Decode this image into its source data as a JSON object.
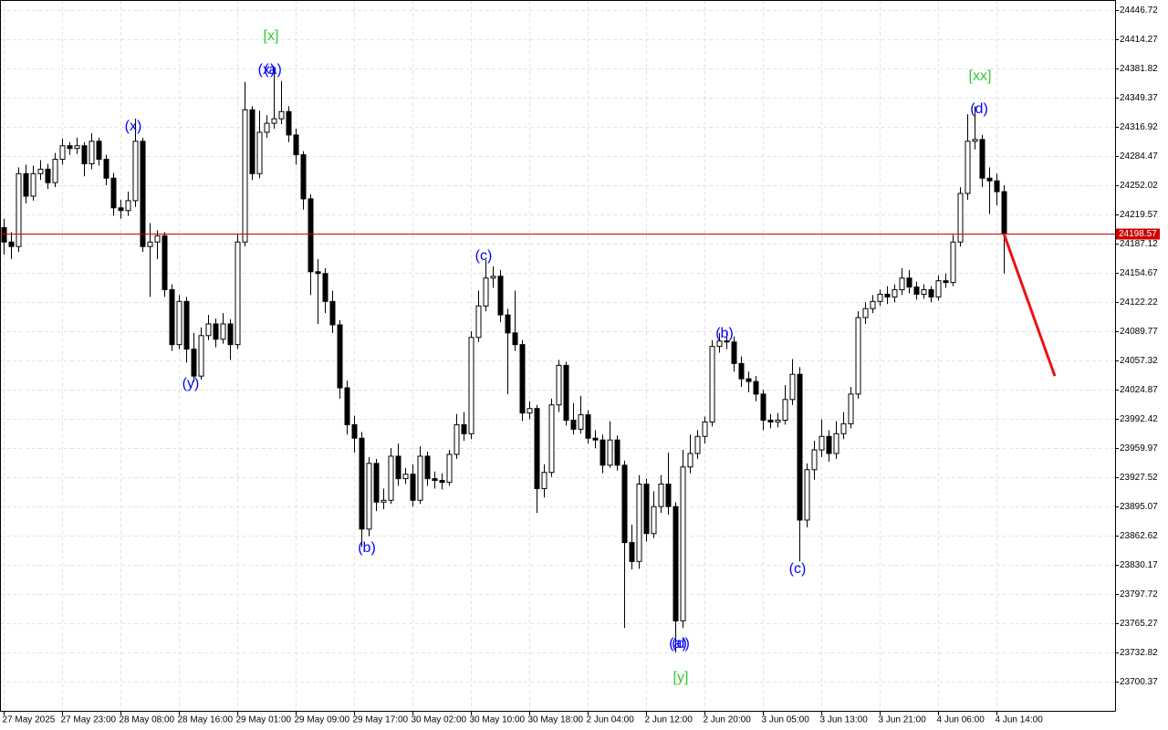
{
  "chart_data": {
    "type": "candlestick",
    "up_color": "#ffffff",
    "down_color": "#000000",
    "grid": true,
    "categories": [
      "27 May 2025",
      null,
      null,
      null,
      null,
      null,
      null,
      null,
      "27 May 23:00",
      null,
      null,
      null,
      null,
      null,
      null,
      null,
      "28 May 08:00",
      null,
      null,
      null,
      null,
      null,
      null,
      null,
      "28 May 16:00",
      null,
      null,
      null,
      null,
      null,
      null,
      null,
      "29 May 01:00",
      null,
      null,
      null,
      null,
      null,
      null,
      null,
      "29 May 09:00",
      null,
      null,
      null,
      null,
      null,
      null,
      null,
      "29 May 17:00",
      null,
      null,
      null,
      null,
      null,
      null,
      null,
      "30 May 02:00",
      null,
      null,
      null,
      null,
      null,
      null,
      null,
      "30 May 10:00",
      null,
      null,
      null,
      null,
      null,
      null,
      null,
      "30 May 18:00",
      null,
      null,
      null,
      null,
      null,
      null,
      null,
      "2 Jun 04:00",
      null,
      null,
      null,
      null,
      null,
      null,
      null,
      "2 Jun 12:00",
      null,
      null,
      null,
      null,
      null,
      null,
      null,
      "2 Jun 20:00",
      null,
      null,
      null,
      null,
      null,
      null,
      null,
      "3 Jun 05:00",
      null,
      null,
      null,
      null,
      null,
      null,
      null,
      "3 Jun 13:00",
      null,
      null,
      null,
      null,
      null,
      null,
      null,
      "3 Jun 21:00",
      null,
      null,
      null,
      null,
      null,
      null,
      null,
      "4 Jun 06:00",
      null,
      null,
      null,
      null,
      null,
      null,
      null,
      "4 Jun 14:00",
      null
    ],
    "open": [
      24205,
      24189,
      24184,
      24265,
      24240,
      24265,
      24270,
      24255,
      24281,
      24296,
      24293,
      24296,
      24276,
      24301,
      24281,
      24260,
      24227,
      24224,
      24235,
      24301,
      24184,
      24189,
      24196,
      24136,
      24075,
      24123,
      24070,
      24040,
      24085,
      24098,
      24081,
      24098,
      24075,
      24189,
      24336,
      24265,
      24311,
      24321,
      24326,
      24334,
      24308,
      24286,
      24237,
      24156,
      24154,
      24123,
      24097,
      24027,
      23986,
      23971,
      23870,
      23943,
      23900,
      23902,
      23951,
      23926,
      23931,
      23902,
      23951,
      23926,
      23924,
      23922,
      23953,
      23986,
      23976,
      24083,
      24118,
      24149,
      24151,
      24108,
      24088,
      24075,
      23999,
      24004,
      23915,
      23933,
      24008,
      24052,
      23991,
      23981,
      23997,
      23971,
      23969,
      23941,
      23969,
      23941,
      23855,
      23834,
      23920,
      23865,
      23895,
      23920,
      23895,
      23768,
      23939,
      23954,
      23973,
      23989,
      24073,
      24079,
      24078,
      24054,
      24037,
      24034,
      24020,
      23991,
      23989,
      23991,
      24014,
      24042,
      23880,
      23936,
      23958,
      23973,
      23954,
      23976,
      23987,
      24020,
      24105,
      24115,
      24123,
      24131,
      24128,
      24136,
      24149,
      24139,
      24131,
      24136,
      24128,
      24146,
      24144,
      24189,
      24243,
      24301,
      24303,
      24260,
      24257,
      24245
    ],
    "high": [
      24215,
      24200,
      24272,
      24275,
      24274,
      24280,
      24276,
      24288,
      24304,
      24300,
      24305,
      24300,
      24310,
      24305,
      24286,
      24266,
      24236,
      24245,
      24326,
      24305,
      24210,
      24202,
      24200,
      24142,
      24130,
      24128,
      24088,
      24094,
      24108,
      24104,
      24110,
      24103,
      24198,
      24367,
      24340,
      24335,
      24330,
      24382,
      24368,
      24340,
      24315,
      24290,
      24242,
      24170,
      24160,
      24135,
      24102,
      24035,
      23996,
      23978,
      23950,
      23948,
      23915,
      23960,
      23965,
      23938,
      23942,
      23962,
      23956,
      23934,
      23932,
      23958,
      23998,
      24000,
      24090,
      24135,
      24169,
      24162,
      24158,
      24115,
      24135,
      24080,
      24012,
      24008,
      23942,
      24015,
      24058,
      24056,
      24010,
      24018,
      24002,
      23980,
      23975,
      23990,
      23974,
      23946,
      23875,
      23930,
      23926,
      23912,
      23930,
      23955,
      23900,
      23958,
      23975,
      23980,
      23995,
      24080,
      24088,
      24090,
      24084,
      24062,
      24045,
      24040,
      24025,
      23998,
      23999,
      24030,
      24059,
      24050,
      23943,
      23968,
      23992,
      23980,
      23990,
      24000,
      24028,
      24112,
      24122,
      24130,
      24136,
      24140,
      24142,
      24160,
      24158,
      24145,
      24142,
      24140,
      24152,
      24154,
      24197,
      24250,
      24331,
      24340,
      24308,
      24272,
      24265,
      24252
    ],
    "low": [
      24175,
      24170,
      24178,
      24232,
      24235,
      24258,
      24248,
      24250,
      24275,
      24286,
      24287,
      24262,
      24270,
      24274,
      24252,
      24218,
      24215,
      24218,
      24228,
      24178,
      24128,
      24170,
      24128,
      24068,
      24070,
      24055,
      24034,
      24036,
      24080,
      24072,
      24076,
      24058,
      24070,
      24184,
      24258,
      24260,
      24305,
      24315,
      24320,
      24300,
      24275,
      24225,
      24130,
      24098,
      24110,
      24088,
      24015,
      23975,
      23955,
      23850,
      23862,
      23890,
      23892,
      23898,
      23918,
      23920,
      23895,
      23898,
      23918,
      23915,
      23914,
      23918,
      23948,
      23968,
      23970,
      24078,
      24112,
      24138,
      24100,
      24020,
      24068,
      23990,
      23992,
      23888,
      23905,
      23928,
      24000,
      23985,
      23975,
      23976,
      23965,
      23960,
      23932,
      23938,
      23935,
      23760,
      23825,
      23826,
      23856,
      23860,
      23888,
      23886,
      23733,
      23760,
      23932,
      23948,
      23965,
      23984,
      24066,
      24070,
      24045,
      24028,
      24022,
      24012,
      23980,
      23982,
      23983,
      23986,
      24008,
      23834,
      23872,
      23925,
      23950,
      23945,
      23948,
      23970,
      23982,
      24015,
      24098,
      24110,
      24118,
      24120,
      24122,
      24130,
      24132,
      24125,
      24126,
      24122,
      24124,
      24138,
      24140,
      24184,
      24236,
      24292,
      24250,
      24220,
      24230,
      24154
    ],
    "close": [
      24189,
      24184,
      24265,
      24240,
      24265,
      24270,
      24255,
      24281,
      24296,
      24293,
      24296,
      24276,
      24301,
      24281,
      24260,
      24227,
      24224,
      24235,
      24301,
      24184,
      24189,
      24196,
      24136,
      24075,
      24123,
      24070,
      24040,
      24085,
      24098,
      24081,
      24098,
      24075,
      24189,
      24336,
      24265,
      24311,
      24321,
      24326,
      24334,
      24308,
      24286,
      24237,
      24156,
      24154,
      24123,
      24097,
      24027,
      23986,
      23971,
      23870,
      23943,
      23900,
      23902,
      23951,
      23926,
      23931,
      23902,
      23951,
      23926,
      23924,
      23922,
      23953,
      23986,
      23976,
      24083,
      24118,
      24149,
      24151,
      24108,
      24088,
      24075,
      23999,
      24004,
      23915,
      23933,
      24008,
      24052,
      23991,
      23981,
      23997,
      23971,
      23969,
      23941,
      23969,
      23941,
      23855,
      23834,
      23920,
      23865,
      23895,
      23920,
      23895,
      23768,
      23939,
      23954,
      23973,
      23989,
      24073,
      24079,
      24078,
      24054,
      24037,
      24034,
      24020,
      23991,
      23989,
      23991,
      24014,
      24042,
      23880,
      23936,
      23958,
      23973,
      23954,
      23976,
      23987,
      24020,
      24105,
      24115,
      24123,
      24131,
      24128,
      24136,
      24149,
      24139,
      24131,
      24136,
      24128,
      24146,
      24144,
      24189,
      24243,
      24301,
      24303,
      24260,
      24257,
      24245,
      24198.57
    ],
    "xlim": [
      -0.5,
      152.25
    ],
    "ylim": [
      23668,
      24458
    ],
    "yticks": [
      24446.72,
      24414.27,
      24381.82,
      24349.37,
      24316.92,
      24284.47,
      24252.02,
      24219.57,
      24187.12,
      24154.67,
      24122.22,
      24089.77,
      24057.32,
      24024.87,
      23992.42,
      23959.97,
      23927.52,
      23895.07,
      23862.62,
      23830.17,
      23797.72,
      23765.27,
      23732.82,
      23700.37
    ],
    "price_line": {
      "value": 24198.57,
      "color": "#cc0000"
    },
    "forecast": {
      "color": "#ee1111",
      "x": [
        137,
        144
      ],
      "values": [
        24198.57,
        24040
      ]
    },
    "annotations": [
      {
        "text": "[x]",
        "color": "#33cc33"
      },
      {
        "text": "(x)",
        "color": "#0000ff"
      },
      {
        "text": "(a)",
        "color": "#0000ff"
      },
      {
        "text": "(x)",
        "color": "#0000ff"
      },
      {
        "text": "(y)",
        "color": "#0000ff"
      },
      {
        "text": "(b)",
        "color": "#0000ff"
      },
      {
        "text": "(c)",
        "color": "#0000ff"
      },
      {
        "text": "(b)",
        "color": "#0000ff"
      },
      {
        "text": "(a)",
        "color": "#0000ff"
      },
      {
        "text": "(d)",
        "color": "#0000ff"
      },
      {
        "text": "[y]",
        "color": "#33cc33"
      },
      {
        "text": "(c)",
        "color": "#0000ff"
      },
      {
        "text": "[xx]",
        "color": "#33cc33"
      },
      {
        "text": "(d)",
        "color": "#0000ff"
      }
    ]
  }
}
